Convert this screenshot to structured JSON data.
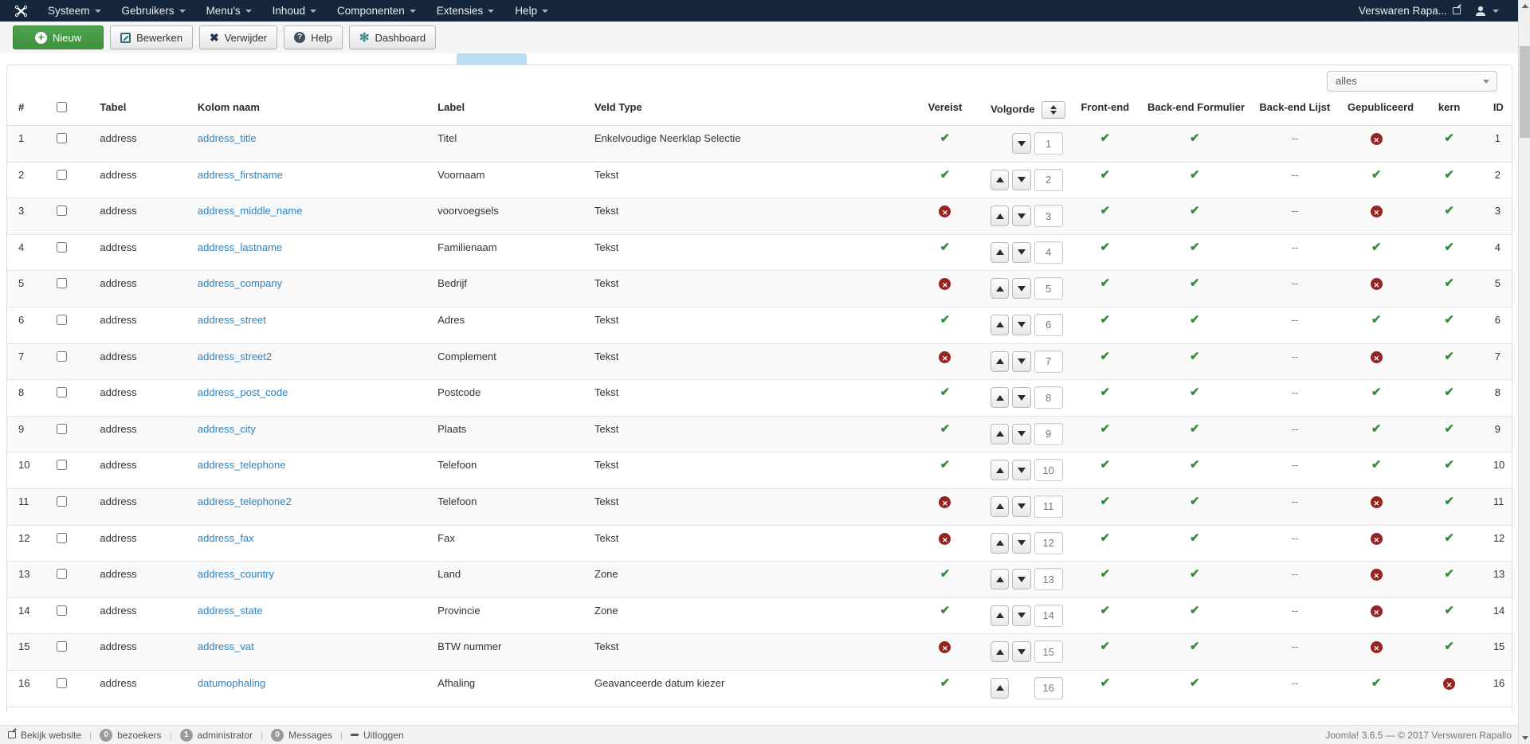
{
  "navbar": {
    "menus": [
      {
        "label": "Systeem"
      },
      {
        "label": "Gebruikers"
      },
      {
        "label": "Menu's"
      },
      {
        "label": "Inhoud"
      },
      {
        "label": "Componenten"
      },
      {
        "label": "Extensies"
      },
      {
        "label": "Help"
      }
    ],
    "site_name": "Verswaren Rapa..."
  },
  "toolbar": {
    "buttons": [
      {
        "label": "Nieuw"
      },
      {
        "label": "Bewerken"
      },
      {
        "label": "Verwijder"
      },
      {
        "label": "Help"
      },
      {
        "label": "Dashboard"
      }
    ]
  },
  "filter": {
    "selected": "alles"
  },
  "table": {
    "headers": [
      "#",
      "",
      "Tabel",
      "Kolom naam",
      "Label",
      "Veld Type",
      "Vereist",
      "Volgorde",
      "Front-end",
      "Back-end Formulier",
      "Back-end Lijst",
      "Gepubliceerd",
      "kern",
      "ID"
    ],
    "not_available": "--",
    "rows": [
      {
        "n": 1,
        "tabel": "address",
        "kolom": "address_title",
        "label": "Titel",
        "veld": "Enkelvoudige Neerklap Selectie",
        "vereist": true,
        "order": "1",
        "order_up": false,
        "order_down": true,
        "frontend": true,
        "be_form": true,
        "be_lijst": "--",
        "gepubliceerd": false,
        "kern": true,
        "id": 1
      },
      {
        "n": 2,
        "tabel": "address",
        "kolom": "address_firstname",
        "label": "Voornaam",
        "veld": "Tekst",
        "vereist": true,
        "order": "2",
        "order_up": true,
        "order_down": true,
        "frontend": true,
        "be_form": true,
        "be_lijst": "--",
        "gepubliceerd": true,
        "kern": true,
        "id": 2
      },
      {
        "n": 3,
        "tabel": "address",
        "kolom": "address_middle_name",
        "label": "voorvoegsels",
        "veld": "Tekst",
        "vereist": false,
        "order": "3",
        "order_up": true,
        "order_down": true,
        "frontend": true,
        "be_form": true,
        "be_lijst": "--",
        "gepubliceerd": false,
        "kern": true,
        "id": 3
      },
      {
        "n": 4,
        "tabel": "address",
        "kolom": "address_lastname",
        "label": "Familienaam",
        "veld": "Tekst",
        "vereist": true,
        "order": "4",
        "order_up": true,
        "order_down": true,
        "frontend": true,
        "be_form": true,
        "be_lijst": "--",
        "gepubliceerd": true,
        "kern": true,
        "id": 4
      },
      {
        "n": 5,
        "tabel": "address",
        "kolom": "address_company",
        "label": "Bedrijf",
        "veld": "Tekst",
        "vereist": false,
        "order": "5",
        "order_up": true,
        "order_down": true,
        "frontend": true,
        "be_form": true,
        "be_lijst": "--",
        "gepubliceerd": false,
        "kern": true,
        "id": 5
      },
      {
        "n": 6,
        "tabel": "address",
        "kolom": "address_street",
        "label": "Adres",
        "veld": "Tekst",
        "vereist": true,
        "order": "6",
        "order_up": true,
        "order_down": true,
        "frontend": true,
        "be_form": true,
        "be_lijst": "--",
        "gepubliceerd": true,
        "kern": true,
        "id": 6
      },
      {
        "n": 7,
        "tabel": "address",
        "kolom": "address_street2",
        "label": "Complement",
        "veld": "Tekst",
        "vereist": false,
        "order": "7",
        "order_up": true,
        "order_down": true,
        "frontend": true,
        "be_form": true,
        "be_lijst": "--",
        "gepubliceerd": false,
        "kern": true,
        "id": 7
      },
      {
        "n": 8,
        "tabel": "address",
        "kolom": "address_post_code",
        "label": "Postcode",
        "veld": "Tekst",
        "vereist": true,
        "order": "8",
        "order_up": true,
        "order_down": true,
        "frontend": true,
        "be_form": true,
        "be_lijst": "--",
        "gepubliceerd": true,
        "kern": true,
        "id": 8
      },
      {
        "n": 9,
        "tabel": "address",
        "kolom": "address_city",
        "label": "Plaats",
        "veld": "Tekst",
        "vereist": true,
        "order": "9",
        "order_up": true,
        "order_down": true,
        "frontend": true,
        "be_form": true,
        "be_lijst": "--",
        "gepubliceerd": true,
        "kern": true,
        "id": 9
      },
      {
        "n": 10,
        "tabel": "address",
        "kolom": "address_telephone",
        "label": "Telefoon",
        "veld": "Tekst",
        "vereist": true,
        "order": "10",
        "order_up": true,
        "order_down": true,
        "frontend": true,
        "be_form": true,
        "be_lijst": "--",
        "gepubliceerd": true,
        "kern": true,
        "id": 10
      },
      {
        "n": 11,
        "tabel": "address",
        "kolom": "address_telephone2",
        "label": "Telefoon",
        "veld": "Tekst",
        "vereist": false,
        "order": "11",
        "order_up": true,
        "order_down": true,
        "frontend": true,
        "be_form": true,
        "be_lijst": "--",
        "gepubliceerd": false,
        "kern": true,
        "id": 11
      },
      {
        "n": 12,
        "tabel": "address",
        "kolom": "address_fax",
        "label": "Fax",
        "veld": "Tekst",
        "vereist": false,
        "order": "12",
        "order_up": true,
        "order_down": true,
        "frontend": true,
        "be_form": true,
        "be_lijst": "--",
        "gepubliceerd": false,
        "kern": true,
        "id": 12
      },
      {
        "n": 13,
        "tabel": "address",
        "kolom": "address_country",
        "label": "Land",
        "veld": "Zone",
        "vereist": true,
        "order": "13",
        "order_up": true,
        "order_down": true,
        "frontend": true,
        "be_form": true,
        "be_lijst": "--",
        "gepubliceerd": false,
        "kern": true,
        "id": 13
      },
      {
        "n": 14,
        "tabel": "address",
        "kolom": "address_state",
        "label": "Provincie",
        "veld": "Zone",
        "vereist": true,
        "order": "14",
        "order_up": true,
        "order_down": true,
        "frontend": true,
        "be_form": true,
        "be_lijst": "--",
        "gepubliceerd": false,
        "kern": true,
        "id": 14
      },
      {
        "n": 15,
        "tabel": "address",
        "kolom": "address_vat",
        "label": "BTW nummer",
        "veld": "Tekst",
        "vereist": false,
        "order": "15",
        "order_up": true,
        "order_down": true,
        "frontend": true,
        "be_form": true,
        "be_lijst": "--",
        "gepubliceerd": false,
        "kern": true,
        "id": 15
      },
      {
        "n": 16,
        "tabel": "address",
        "kolom": "datumophaling",
        "label": "Afhaling",
        "veld": "Geavanceerde datum kiezer",
        "vereist": true,
        "order": "16",
        "order_up": true,
        "order_down": false,
        "frontend": true,
        "be_form": true,
        "be_lijst": "--",
        "gepubliceerd": true,
        "kern": false,
        "id": 16
      }
    ]
  },
  "footer": {
    "view_site": "Bekijk website",
    "badges": [
      {
        "count": "0",
        "label": "bezoekers"
      },
      {
        "count": "1",
        "label": "administrator"
      },
      {
        "count": "0",
        "label": "Messages"
      }
    ],
    "logout": "Uitloggen",
    "version": "Joomla! 3.6.5 — © 2017 Verswaren Rapallo"
  },
  "colors": {
    "navbar_bg": "#14273b",
    "accent_green_button": "#46a546",
    "check_green": "#3b8a3e",
    "cross_red": "#942521",
    "link_blue": "#2e83c2",
    "active_tab_blue": "#b9ddf1",
    "row_stripe": "#f9f9f9"
  }
}
